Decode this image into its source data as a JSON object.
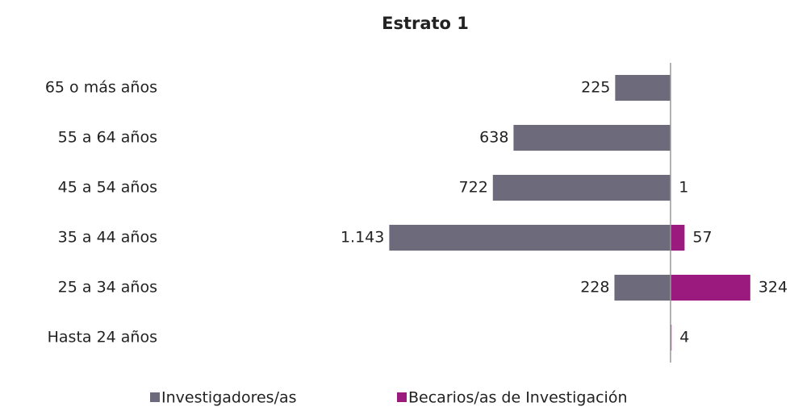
{
  "chart_data": {
    "type": "butterfly",
    "title": "Estrato 1",
    "categories": [
      "65 o más años",
      "55 a 64 años",
      "45 a 54 años",
      "35 a 44 años",
      "25 a 34 años",
      "Hasta 24 años"
    ],
    "series": [
      {
        "name": "Investigadores/as",
        "color": "#6d6b7b",
        "side": "left",
        "values": [
          225,
          638,
          722,
          1143,
          228,
          null
        ],
        "value_labels": [
          "225",
          "638",
          "722",
          "1.143",
          "228",
          null
        ]
      },
      {
        "name": "Becarios/as de Investigación",
        "color": "#9b1a7d",
        "side": "right",
        "values": [
          null,
          null,
          1,
          57,
          324,
          4
        ]
      }
    ],
    "legend": "bottom"
  }
}
